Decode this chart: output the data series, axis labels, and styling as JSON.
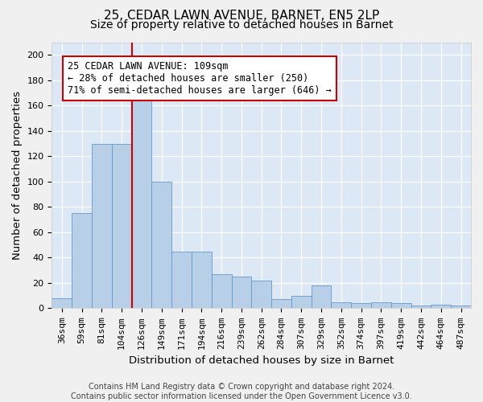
{
  "title_line1": "25, CEDAR LAWN AVENUE, BARNET, EN5 2LP",
  "title_line2": "Size of property relative to detached houses in Barnet",
  "xlabel": "Distribution of detached houses by size in Barnet",
  "ylabel": "Number of detached properties",
  "footer_line1": "Contains HM Land Registry data © Crown copyright and database right 2024.",
  "footer_line2": "Contains public sector information licensed under the Open Government Licence v3.0.",
  "bar_labels": [
    "36sqm",
    "59sqm",
    "81sqm",
    "104sqm",
    "126sqm",
    "149sqm",
    "171sqm",
    "194sqm",
    "216sqm",
    "239sqm",
    "262sqm",
    "284sqm",
    "307sqm",
    "329sqm",
    "352sqm",
    "374sqm",
    "397sqm",
    "419sqm",
    "442sqm",
    "464sqm",
    "487sqm"
  ],
  "bar_values": [
    8,
    75,
    130,
    130,
    165,
    100,
    45,
    45,
    27,
    25,
    22,
    7,
    10,
    18,
    5,
    4,
    5,
    4,
    2,
    3,
    2
  ],
  "bar_color": "#b8cfe8",
  "bar_edge_color": "#6699cc",
  "vline_x": 3.5,
  "vline_color": "#cc0000",
  "annotation_text": "25 CEDAR LAWN AVENUE: 109sqm\n← 28% of detached houses are smaller (250)\n71% of semi-detached houses are larger (646) →",
  "annotation_box_color": "#ffffff",
  "annotation_box_edge": "#cc0000",
  "ylim": [
    0,
    210
  ],
  "yticks": [
    0,
    20,
    40,
    60,
    80,
    100,
    120,
    140,
    160,
    180,
    200
  ],
  "background_color": "#dce8f5",
  "fig_background": "#f0f0f0",
  "title_fontsize": 11,
  "subtitle_fontsize": 10,
  "axis_label_fontsize": 9.5,
  "tick_fontsize": 8,
  "annotation_fontsize": 8.5
}
